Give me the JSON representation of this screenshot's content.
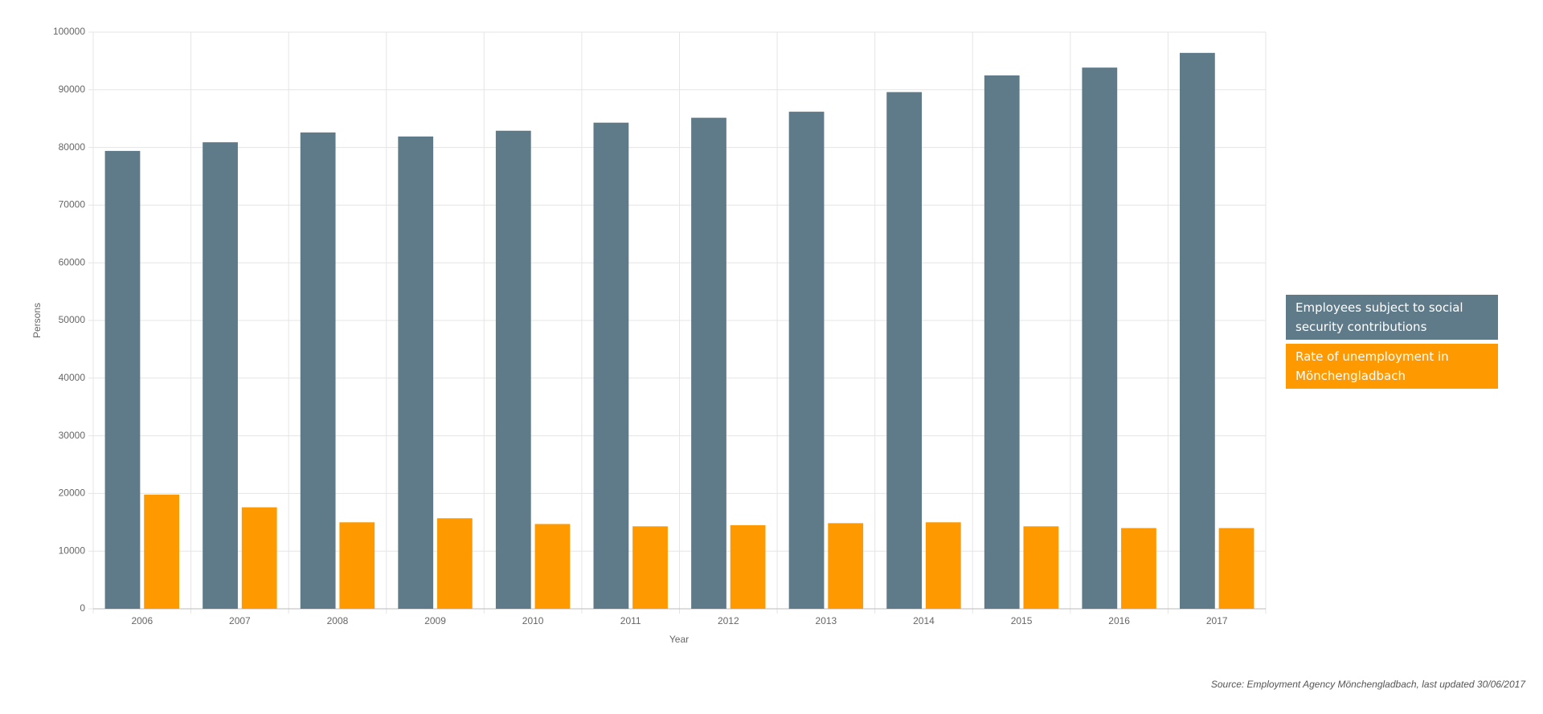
{
  "chart_data": {
    "type": "bar",
    "y_label": "Persons",
    "x_label": "Year",
    "categories": [
      "2006",
      "2007",
      "2008",
      "2009",
      "2010",
      "2011",
      "2012",
      "2013",
      "2014",
      "2015",
      "2016",
      "2017"
    ],
    "series": [
      {
        "name": "Employees subject to social security contributions",
        "color": "#5f7b89",
        "values": [
          79400,
          80900,
          82600,
          81900,
          82900,
          84300,
          85150,
          86200,
          89600,
          92500,
          93850,
          96400
        ]
      },
      {
        "name": "Rate of unemployment in Mönchengladbach",
        "color": "#ff9900",
        "values": [
          19800,
          17600,
          15000,
          15700,
          14700,
          14300,
          14500,
          14850,
          15000,
          14300,
          14000,
          14000
        ]
      }
    ],
    "ylim": [
      0,
      100000
    ],
    "yticks": [
      0,
      10000,
      20000,
      30000,
      40000,
      50000,
      60000,
      70000,
      80000,
      90000,
      100000
    ],
    "grid": true,
    "source": "Source: Employment Agency Mönchengladbach, last updated 30/06/2017"
  }
}
